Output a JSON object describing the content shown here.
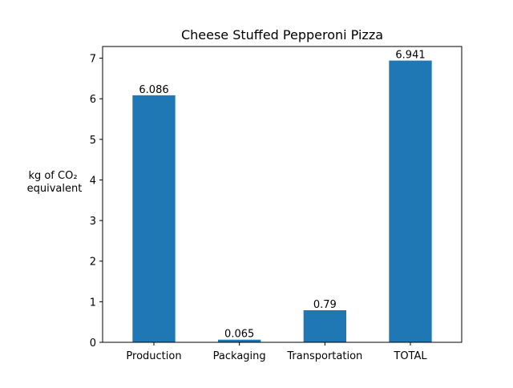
{
  "chart_data": {
    "type": "bar",
    "title": "Cheese Stuffed Pepperoni Pizza",
    "ylabel_lines": [
      "kg of CO₂",
      "equivalent"
    ],
    "xlabel": "",
    "categories": [
      "Production",
      "Packaging",
      "Transportation",
      "TOTAL"
    ],
    "values": [
      6.086,
      0.065,
      0.79,
      6.941
    ],
    "data_labels": [
      "6.086",
      "0.065",
      "0.79",
      "6.941"
    ],
    "ylim": [
      0,
      7.288
    ],
    "yticks": [
      0,
      1,
      2,
      3,
      4,
      5,
      6,
      7
    ],
    "grid": false,
    "bar_color": "#1f77b4"
  }
}
